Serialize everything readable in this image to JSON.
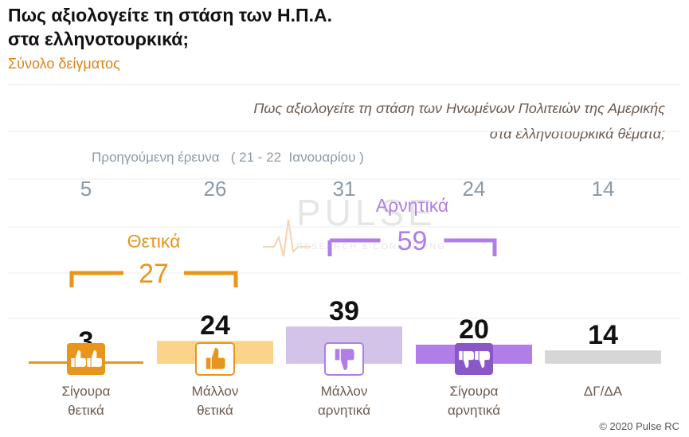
{
  "header": {
    "title_line1": "Πως αξιολογείτε τη στάση των Η.Π.Α.",
    "title_line2": "στα ελληνοτουρκικά;",
    "subtitle": "Σύνολο δείγματος",
    "question_line1": "Πως αξιολογείτε τη στάση των Ηνωμένων Πολιτειών της Αμερικής",
    "question_line2": "στα ελληνοτουρκικά θέματα;",
    "previous_label": "Προηγούμενη έρευνα   ( 21 - 22  Ιανουαρίου )"
  },
  "watermark": {
    "word": "PULSE",
    "sub": "RESEARCH & CONSULTING"
  },
  "footer": {
    "copyright": "© 2020 Pulse RC"
  },
  "chart_data": {
    "type": "bar",
    "categories": [
      [
        "Σίγουρα",
        "θετικά"
      ],
      [
        "Μάλλον",
        "θετικά"
      ],
      [
        "Μάλλον",
        "αρνητικά"
      ],
      [
        "Σίγουρα",
        "αρνητικά"
      ],
      [
        "ΔΓ/ΔΑ"
      ]
    ],
    "values": [
      3,
      24,
      39,
      20,
      14
    ],
    "previous_values": [
      5,
      26,
      31,
      24,
      14
    ],
    "colors": [
      "#e8951c",
      "#fcd38a",
      "#d3c3e8",
      "#b07ee6",
      "#d6d6d6"
    ],
    "icons": [
      "double-thumbs-up-icon",
      "thumbs-up-icon",
      "thumbs-down-icon",
      "double-thumbs-down-icon",
      ""
    ],
    "groups": [
      {
        "label": "Θετικά",
        "value": 27,
        "color": "#e8951c",
        "from": 0,
        "to": 1
      },
      {
        "label": "Αρνητικά",
        "value": 59,
        "color": "#b07ee6",
        "from": 2,
        "to": 3
      }
    ],
    "ylim": [
      0,
      100
    ],
    "grid": true
  }
}
